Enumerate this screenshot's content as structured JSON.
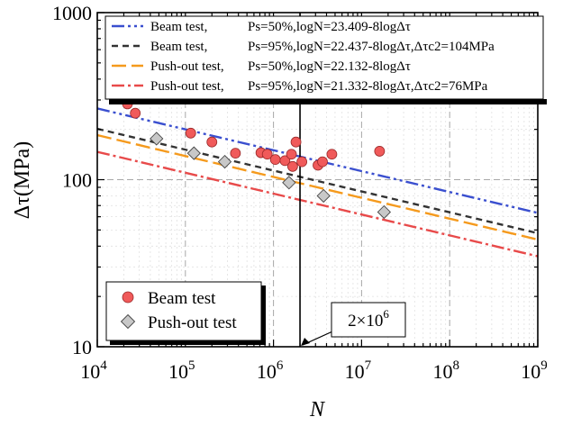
{
  "chart_data": {
    "type": "scatter",
    "xlabel": "N",
    "ylabel": "Δτ(MPa)",
    "xscale": "log",
    "yscale": "log",
    "xlim": [
      10000,
      1000000000
    ],
    "ylim": [
      10,
      1000
    ],
    "grid": true,
    "x_ticks": [
      {
        "value": 10000,
        "base": "10",
        "exp": "4"
      },
      {
        "value": 100000,
        "base": "10",
        "exp": "5"
      },
      {
        "value": 1000000,
        "base": "10",
        "exp": "6"
      },
      {
        "value": 10000000,
        "base": "10",
        "exp": "7"
      },
      {
        "value": 100000000,
        "base": "10",
        "exp": "8"
      },
      {
        "value": 1000000000,
        "base": "10",
        "exp": "9"
      }
    ],
    "y_ticks": [
      {
        "value": 10,
        "label": "10"
      },
      {
        "value": 100,
        "label": "100"
      },
      {
        "value": 1000,
        "label": "1000"
      }
    ],
    "lines_legend_position": "top",
    "markers_legend_position": "bottom-left",
    "series": [
      {
        "name": "Beam test",
        "marker": "circle",
        "color": "#f05a5a",
        "points": [
          [
            22000,
            284
          ],
          [
            27000,
            250
          ],
          [
            115000,
            190
          ],
          [
            200000,
            168
          ],
          [
            370000,
            144
          ],
          [
            720000,
            145
          ],
          [
            850000,
            142
          ],
          [
            1050000,
            132
          ],
          [
            1350000,
            130
          ],
          [
            1600000,
            142
          ],
          [
            1650000,
            120
          ],
          [
            1800000,
            168
          ],
          [
            2100000,
            128
          ],
          [
            3200000,
            122
          ],
          [
            3600000,
            128
          ],
          [
            4600000,
            142
          ],
          [
            16000000,
            148
          ]
        ]
      },
      {
        "name": "Push-out test",
        "marker": "diamond",
        "color": "#c8c8c8",
        "points": [
          [
            47000,
            176
          ],
          [
            125000,
            144
          ],
          [
            280000,
            128
          ],
          [
            1500000,
            96
          ],
          [
            3700000,
            80
          ],
          [
            18000000,
            64
          ]
        ]
      }
    ],
    "fit_lines": [
      {
        "name": "Beam test,",
        "formula": "Ps=50%,logN=23.409-8logΔτ",
        "a": 23.409,
        "color": "#3a4fcf",
        "dash": "14,4,3,4,3,4"
      },
      {
        "name": "Beam test,",
        "formula": "Ps=95%,logN=22.437-8logΔτ,Δτc2=104MPa",
        "a": 22.437,
        "color": "#333333",
        "dash": "7,5"
      },
      {
        "name": "Push-out test,",
        "formula": "Ps=50%,logN=22.132-8logΔτ",
        "a": 22.132,
        "color": "#f59a1d",
        "dash": "16,6"
      },
      {
        "name": "Push-out test,",
        "formula": "Ps=95%,logN=21.332-8logΔτ,Δτc2=76MPa",
        "a": 21.332,
        "color": "#e84a4a",
        "dash": "14,4,3,4"
      }
    ],
    "reference_line": {
      "x": 2000000,
      "label": "2×10",
      "label_exp": "6"
    }
  }
}
